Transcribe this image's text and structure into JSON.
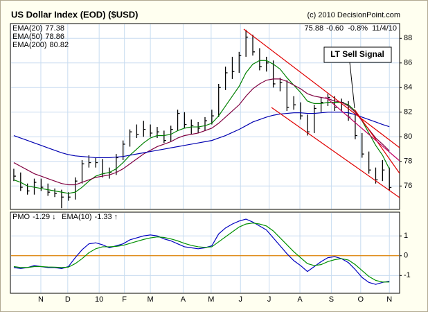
{
  "chart_data": [
    {
      "type": "ohlc",
      "title": "US Dollar Index (EOD) ($USD)",
      "subtitle": "(c) 2010 DecisionPoint.com",
      "quote": "-0.60  -0.8%  11/4/10",
      "annotation": "LT Sell Signal",
      "x": [
        0,
        1,
        2,
        3,
        4,
        5,
        6,
        7,
        8,
        9,
        10,
        11,
        12,
        13,
        14,
        15,
        16,
        17,
        18,
        19,
        20,
        21,
        22,
        23,
        24,
        25,
        26,
        27,
        28,
        29,
        30,
        31,
        32,
        33,
        34,
        35,
        36,
        37,
        38,
        39,
        40,
        41,
        42,
        43,
        44,
        45,
        46,
        47,
        48,
        49,
        50,
        51,
        52,
        53,
        54,
        55
      ],
      "high": [
        77.4,
        77.1,
        76.2,
        76.6,
        76.6,
        76.2,
        75.8,
        75.7,
        75.5,
        76.7,
        78.1,
        78.5,
        78.3,
        78.2,
        77.5,
        78.6,
        79.7,
        80.6,
        81.0,
        81.3,
        81.0,
        80.8,
        80.5,
        80.9,
        82.2,
        82.0,
        81.4,
        81.2,
        81.6,
        82.2,
        84.3,
        85.7,
        86.5,
        86.9,
        88.7,
        88.3,
        87.2,
        86.5,
        86.2,
        84.8,
        84.6,
        83.3,
        82.8,
        81.8,
        82.6,
        83.2,
        83.5,
        83.3,
        83.1,
        82.9,
        81.9,
        80.3,
        78.8,
        77.5,
        78.1,
        77.5
      ],
      "low": [
        76.4,
        75.6,
        75.3,
        75.3,
        75.6,
        75.2,
        75.1,
        74.2,
        74.8,
        74.9,
        76.2,
        77.5,
        77.5,
        76.7,
        76.6,
        76.9,
        78.1,
        79.2,
        79.9,
        80.0,
        80.0,
        79.9,
        79.5,
        79.6,
        80.5,
        80.7,
        80.2,
        80.3,
        80.5,
        81.0,
        81.6,
        83.8,
        84.7,
        85.2,
        86.5,
        86.6,
        85.4,
        85.3,
        84.0,
        83.7,
        82.1,
        82.2,
        81.4,
        80.1,
        80.3,
        82.0,
        82.5,
        82.1,
        82.1,
        81.3,
        79.8,
        78.3,
        77.0,
        76.2,
        76.4,
        75.6
      ],
      "close": [
        76.8,
        75.9,
        75.6,
        76.3,
        75.9,
        75.5,
        75.4,
        75.1,
        75.1,
        76.4,
        77.8,
        77.9,
        77.9,
        77.0,
        77.1,
        78.3,
        79.4,
        80.4,
        80.2,
        80.6,
        80.3,
        80.4,
        79.7,
        80.6,
        81.9,
        81.0,
        80.9,
        80.7,
        81.3,
        81.7,
        84.0,
        85.2,
        85.3,
        86.6,
        88.1,
        86.9,
        85.7,
        86.0,
        84.3,
        84.4,
        82.4,
        82.6,
        81.7,
        80.4,
        82.3,
        82.8,
        83.2,
        82.4,
        82.8,
        81.6,
        80.1,
        78.6,
        77.3,
        76.5,
        77.3,
        75.88
      ],
      "color": "#000000",
      "series": [
        {
          "name": "EMA(20)",
          "color": "#008000",
          "values": [
            76.5,
            76.3,
            76.0,
            75.9,
            75.8,
            75.7,
            75.6,
            75.5,
            75.4,
            75.5,
            75.9,
            76.4,
            76.8,
            77.0,
            77.1,
            77.4,
            77.9,
            78.5,
            79.0,
            79.5,
            79.9,
            80.1,
            80.1,
            80.2,
            80.5,
            80.7,
            80.8,
            80.8,
            80.9,
            81.1,
            81.7,
            82.5,
            83.3,
            84.1,
            85.2,
            85.9,
            86.2,
            86.2,
            85.9,
            85.5,
            84.8,
            84.2,
            83.6,
            82.9,
            82.7,
            82.7,
            82.8,
            82.8,
            82.8,
            82.6,
            82.1,
            81.3,
            80.3,
            79.3,
            78.5,
            77.38
          ]
        },
        {
          "name": "EMA(50)",
          "color": "#800040",
          "values": [
            77.9,
            77.6,
            77.3,
            77.0,
            76.8,
            76.6,
            76.4,
            76.2,
            76.1,
            76.1,
            76.3,
            76.5,
            76.7,
            76.8,
            76.9,
            77.1,
            77.4,
            77.8,
            78.2,
            78.6,
            78.9,
            79.2,
            79.4,
            79.6,
            79.9,
            80.1,
            80.2,
            80.3,
            80.5,
            80.7,
            81.1,
            81.6,
            82.1,
            82.6,
            83.3,
            83.9,
            84.3,
            84.6,
            84.7,
            84.7,
            84.5,
            84.2,
            83.9,
            83.5,
            83.3,
            83.2,
            83.1,
            82.9,
            82.8,
            82.5,
            82.0,
            81.3,
            80.6,
            79.9,
            79.4,
            78.86
          ]
        },
        {
          "name": "EMA(200)",
          "color": "#0000b0",
          "values": [
            80.1,
            79.9,
            79.7,
            79.5,
            79.3,
            79.1,
            78.9,
            78.7,
            78.55,
            78.45,
            78.4,
            78.35,
            78.3,
            78.3,
            78.3,
            78.35,
            78.4,
            78.5,
            78.6,
            78.7,
            78.8,
            78.9,
            79.0,
            79.1,
            79.2,
            79.3,
            79.4,
            79.5,
            79.6,
            79.7,
            79.9,
            80.1,
            80.35,
            80.6,
            80.9,
            81.2,
            81.4,
            81.6,
            81.75,
            81.85,
            81.9,
            81.95,
            81.95,
            81.9,
            81.9,
            81.95,
            82.0,
            82.0,
            82.0,
            81.95,
            81.8,
            81.6,
            81.4,
            81.2,
            81.0,
            80.82
          ]
        }
      ],
      "xlim": [
        -0.5,
        56.5
      ],
      "ylim": [
        74.1,
        89.2
      ],
      "yticks": [
        76,
        78,
        80,
        82,
        84,
        86,
        88
      ],
      "grid": true
    },
    {
      "type": "line",
      "x": [
        0,
        1,
        2,
        3,
        4,
        5,
        6,
        7,
        8,
        9,
        10,
        11,
        12,
        13,
        14,
        15,
        16,
        17,
        18,
        19,
        20,
        21,
        22,
        23,
        24,
        25,
        26,
        27,
        28,
        29,
        30,
        31,
        32,
        33,
        34,
        35,
        36,
        37,
        38,
        39,
        40,
        41,
        42,
        43,
        44,
        45,
        46,
        47,
        48,
        49,
        50,
        51,
        52,
        53,
        54,
        55
      ],
      "series": [
        {
          "name": "PMO",
          "color": "#0000c0",
          "values": [
            -0.6,
            -0.65,
            -0.6,
            -0.5,
            -0.55,
            -0.6,
            -0.6,
            -0.65,
            -0.55,
            -0.1,
            0.3,
            0.6,
            0.65,
            0.55,
            0.4,
            0.5,
            0.6,
            0.8,
            0.9,
            1.0,
            1.05,
            1.0,
            0.85,
            0.75,
            0.6,
            0.45,
            0.4,
            0.35,
            0.4,
            0.5,
            1.1,
            1.4,
            1.6,
            1.75,
            1.85,
            1.7,
            1.5,
            1.3,
            0.9,
            0.5,
            0.1,
            -0.25,
            -0.5,
            -0.8,
            -0.55,
            -0.3,
            -0.1,
            -0.05,
            -0.15,
            -0.35,
            -0.7,
            -1.1,
            -1.35,
            -1.45,
            -1.35,
            -1.29
          ]
        },
        {
          "name": "EMA(10)",
          "color": "#009000",
          "values": [
            -0.55,
            -0.6,
            -0.6,
            -0.55,
            -0.55,
            -0.57,
            -0.58,
            -0.6,
            -0.58,
            -0.4,
            -0.15,
            0.15,
            0.35,
            0.45,
            0.45,
            0.47,
            0.52,
            0.62,
            0.72,
            0.82,
            0.9,
            0.95,
            0.92,
            0.85,
            0.75,
            0.62,
            0.52,
            0.45,
            0.42,
            0.45,
            0.7,
            0.95,
            1.2,
            1.45,
            1.6,
            1.65,
            1.6,
            1.5,
            1.25,
            0.9,
            0.55,
            0.2,
            -0.1,
            -0.4,
            -0.5,
            -0.45,
            -0.3,
            -0.2,
            -0.15,
            -0.22,
            -0.45,
            -0.75,
            -1.05,
            -1.25,
            -1.33,
            -1.33
          ]
        }
      ],
      "xlim": [
        -0.5,
        56.5
      ],
      "xticks": [
        {
          "value": 3.96,
          "label": "N"
        },
        {
          "value": 7.9,
          "label": "D"
        },
        {
          "value": 12.5,
          "label": "10"
        },
        {
          "value": 16.2,
          "label": "F"
        },
        {
          "value": 20.0,
          "label": "M"
        },
        {
          "value": 24.8,
          "label": "A"
        },
        {
          "value": 28.9,
          "label": "M"
        },
        {
          "value": 33.2,
          "label": "J"
        },
        {
          "value": 37.4,
          "label": "J"
        },
        {
          "value": 41.9,
          "label": "A"
        },
        {
          "value": 46.5,
          "label": "S"
        },
        {
          "value": 50.8,
          "label": "O"
        },
        {
          "value": 55.0,
          "label": "N"
        }
      ],
      "ylim": [
        -1.9,
        2.2
      ],
      "yticks": [
        -1,
        0,
        1
      ],
      "zero_line": 0,
      "grid": true
    }
  ]
}
